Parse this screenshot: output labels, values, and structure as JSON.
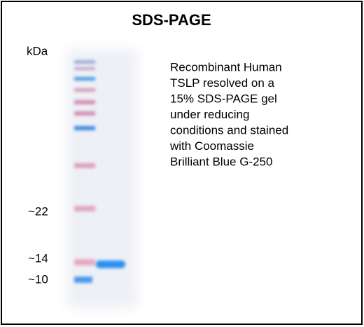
{
  "title": "SDS-PAGE",
  "unit_label": "kDa",
  "markers": [
    "~22",
    "~14",
    "~10"
  ],
  "description": [
    "Recombinant Human",
    "TSLP resolved  on a",
    "15% SDS-PAGE gel",
    "under reducing",
    "conditions and stained",
    "with Coomassie",
    "Brilliant Blue G-250"
  ]
}
